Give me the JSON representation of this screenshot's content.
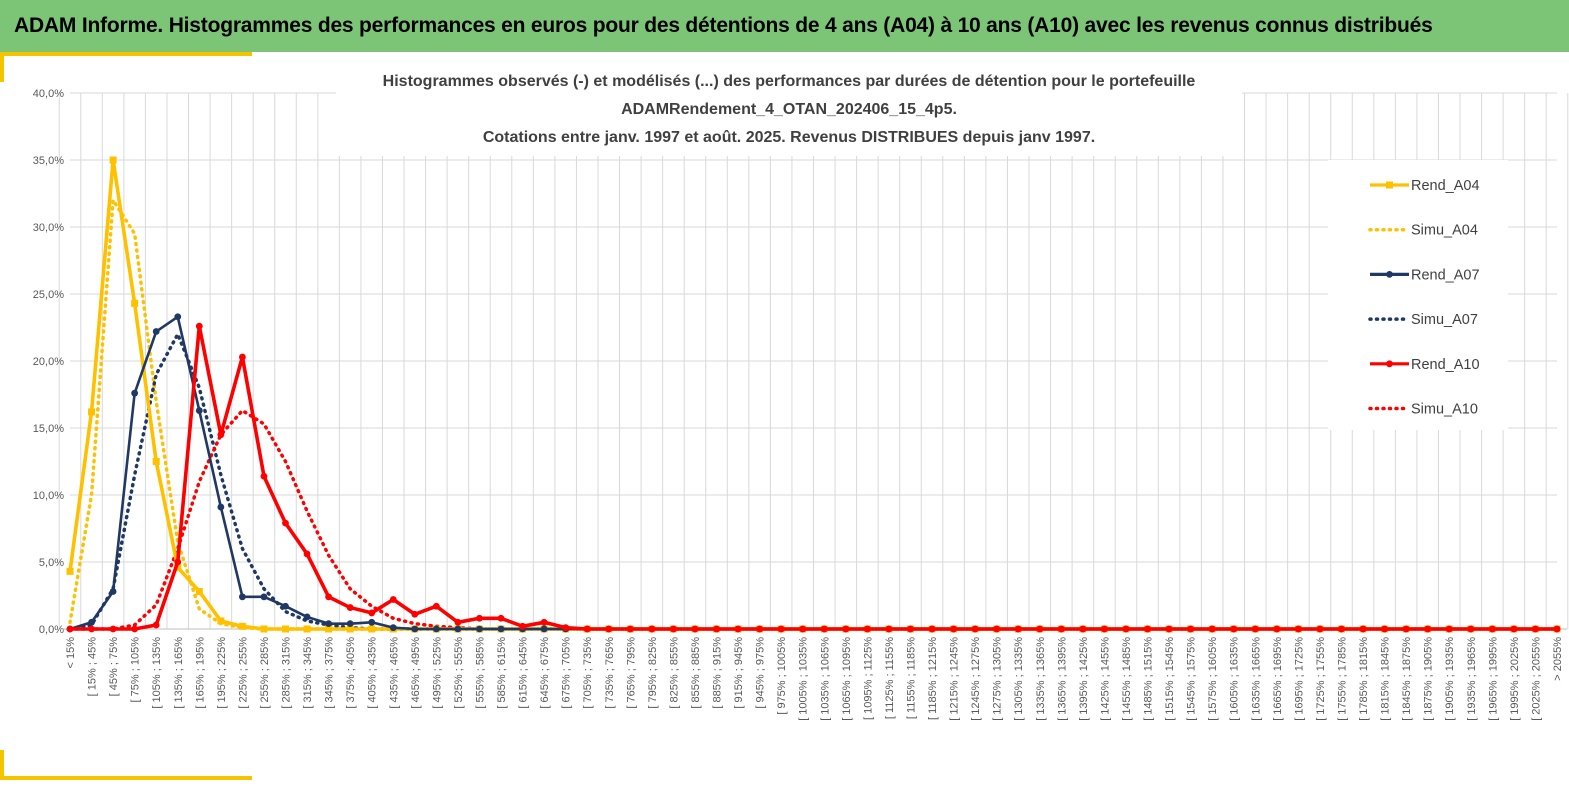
{
  "banner": {
    "title": "ADAM Informe. Histogrammes des performances en euros pour des détentions de 4 ans (A04) à 10 ans (A10) avec les revenus connus distribués",
    "color": "#7cc576",
    "accent": "#f5c400"
  },
  "chart_data": {
    "type": "line",
    "title_lines": [
      "Histogrammes observés (-) et modélisés (...) des performances par durées de détention pour le portefeuille",
      "ADAMRendement_4_OTAN_202406_15_4p5.",
      "Cotations entre janv. 1997 et août. 2025. Revenus DISTRIBUES depuis janv 1997."
    ],
    "ylim": [
      0,
      40
    ],
    "y_ticks": [
      "0,0%",
      "5,0%",
      "10,0%",
      "15,0%",
      "20,0%",
      "25,0%",
      "30,0%",
      "35,0%",
      "40,0%"
    ],
    "grid": true,
    "legend_position": "right",
    "categories": [
      "< 15%",
      "[ 15% ; 45%",
      "[ 45% ; 75%",
      "[ 75% ; 105%",
      "[ 105% ; 135%",
      "[ 135% ; 165%",
      "[ 165% ; 195%",
      "[ 195% ; 225%",
      "[ 225% ; 255%",
      "[ 255% ; 285%",
      "[ 285% ; 315%",
      "[ 315% ; 345%",
      "[ 345% ; 375%",
      "[ 375% ; 405%",
      "[ 405% ; 435%",
      "[ 435% ; 465%",
      "[ 465% ; 495%",
      "[ 495% ; 525%",
      "[ 525% ; 555%",
      "[ 555% ; 585%",
      "[ 585% ; 615%",
      "[ 615% ; 645%",
      "[ 645% ; 675%",
      "[ 675% ; 705%",
      "[ 705% ; 735%",
      "[ 735% ; 765%",
      "[ 765% ; 795%",
      "[ 795% ; 825%",
      "[ 825% ; 855%",
      "[ 855% ; 885%",
      "[ 885% ; 915%",
      "[ 915% ; 945%",
      "[ 945% ; 975%",
      "[ 975% ; 1005%",
      "[ 1005% ; 1035%",
      "[ 1035% ; 1065%",
      "[ 1065% ; 1095%",
      "[ 1095% ; 1125%",
      "[ 1125% ; 1155%",
      "[ 1155% ; 1185%",
      "[ 1185% ; 1215%",
      "[ 1215% ; 1245%",
      "[ 1245% ; 1275%",
      "[ 1275% ; 1305%",
      "[ 1305% ; 1335%",
      "[ 1335% ; 1365%",
      "[ 1365% ; 1395%",
      "[ 1395% ; 1425%",
      "[ 1425% ; 1455%",
      "[ 1455% ; 1485%",
      "[ 1485% ; 1515%",
      "[ 1515% ; 1545%",
      "[ 1545% ; 1575%",
      "[ 1575% ; 1605%",
      "[ 1605% ; 1635%",
      "[ 1635% ; 1665%",
      "[ 1665% ; 1695%",
      "[ 1695% ; 1725%",
      "[ 1725% ; 1755%",
      "[ 1755% ; 1785%",
      "[ 1785% ; 1815%",
      "[ 1815% ; 1845%",
      "[ 1845% ; 1875%",
      "[ 1875% ; 1905%",
      "[ 1905% ; 1935%",
      "[ 1935% ; 1965%",
      "[ 1965% ; 1995%",
      "[ 1995% ; 2025%",
      "[ 2025% ; 2055%",
      "> 2055%"
    ],
    "series": [
      {
        "name": "Rend_A04",
        "color": "#ffc000",
        "style": "solid",
        "markers": true,
        "values": [
          4.3,
          16.2,
          35.0,
          24.3,
          12.5,
          4.6,
          2.8,
          0.6,
          0.2,
          0,
          0,
          0,
          0,
          0,
          0,
          0,
          0,
          0,
          0,
          0,
          0,
          0,
          0,
          0,
          0,
          0,
          0,
          0,
          0,
          0,
          0,
          0,
          0,
          0,
          0,
          0,
          0,
          0,
          0,
          0,
          0,
          0,
          0,
          0,
          0,
          0,
          0,
          0,
          0,
          0,
          0,
          0,
          0,
          0,
          0,
          0,
          0,
          0,
          0,
          0,
          0,
          0,
          0,
          0,
          0,
          0,
          0,
          0,
          0,
          0
        ]
      },
      {
        "name": "Simu_A04",
        "color": "#ffc000",
        "style": "dotted",
        "markers": false,
        "values": [
          0.5,
          10.0,
          32.0,
          29.5,
          17.0,
          6.5,
          1.5,
          0.4,
          0.1,
          0,
          0,
          0,
          0,
          0,
          0,
          0,
          0,
          0,
          0,
          0,
          0,
          0,
          0,
          0,
          0,
          0,
          0,
          0,
          0,
          0,
          0,
          0,
          0,
          0,
          0,
          0,
          0,
          0,
          0,
          0,
          0,
          0,
          0,
          0,
          0,
          0,
          0,
          0,
          0,
          0,
          0,
          0,
          0,
          0,
          0,
          0,
          0,
          0,
          0,
          0,
          0,
          0,
          0,
          0,
          0,
          0,
          0,
          0,
          0,
          0
        ]
      },
      {
        "name": "Rend_A07",
        "color": "#1f3864",
        "style": "solid",
        "markers": true,
        "values": [
          0,
          0.5,
          2.8,
          17.6,
          22.2,
          23.3,
          16.3,
          9.1,
          2.4,
          2.4,
          1.7,
          0.9,
          0.4,
          0.4,
          0.5,
          0.1,
          0,
          0,
          0,
          0,
          0,
          0,
          0,
          0,
          0,
          0,
          0,
          0,
          0,
          0,
          0,
          0,
          0,
          0,
          0,
          0,
          0,
          0,
          0,
          0,
          0,
          0,
          0,
          0,
          0,
          0,
          0,
          0,
          0,
          0,
          0,
          0,
          0,
          0,
          0,
          0,
          0,
          0,
          0,
          0,
          0,
          0,
          0,
          0,
          0,
          0,
          0,
          0,
          0,
          0
        ]
      },
      {
        "name": "Simu_A07",
        "color": "#1f3864",
        "style": "dotted",
        "markers": false,
        "values": [
          0,
          0.3,
          3.0,
          11.5,
          19.0,
          22.0,
          18.0,
          11.5,
          6.0,
          3.0,
          1.3,
          0.6,
          0.3,
          0.1,
          0,
          0,
          0,
          0,
          0,
          0,
          0,
          0,
          0,
          0,
          0,
          0,
          0,
          0,
          0,
          0,
          0,
          0,
          0,
          0,
          0,
          0,
          0,
          0,
          0,
          0,
          0,
          0,
          0,
          0,
          0,
          0,
          0,
          0,
          0,
          0,
          0,
          0,
          0,
          0,
          0,
          0,
          0,
          0,
          0,
          0,
          0,
          0,
          0,
          0,
          0,
          0,
          0,
          0,
          0,
          0
        ]
      },
      {
        "name": "Rend_A10",
        "color": "#ff0000",
        "style": "solid",
        "markers": true,
        "values": [
          0,
          0,
          0,
          0,
          0.3,
          5.0,
          22.6,
          14.5,
          20.3,
          11.4,
          7.9,
          5.6,
          2.4,
          1.6,
          1.2,
          2.2,
          1.1,
          1.7,
          0.5,
          0.8,
          0.8,
          0.2,
          0.5,
          0.1,
          0,
          0,
          0,
          0,
          0,
          0,
          0,
          0,
          0,
          0,
          0,
          0,
          0,
          0,
          0,
          0,
          0,
          0,
          0,
          0,
          0,
          0,
          0,
          0,
          0,
          0,
          0,
          0,
          0,
          0,
          0,
          0,
          0,
          0,
          0,
          0,
          0,
          0,
          0,
          0,
          0,
          0,
          0,
          0,
          0,
          0
        ]
      },
      {
        "name": "Simu_A10",
        "color": "#ff0000",
        "style": "dotted",
        "markers": false,
        "values": [
          0,
          0,
          0,
          0.3,
          1.8,
          6.0,
          11.0,
          14.5,
          16.3,
          15.3,
          12.5,
          8.8,
          5.5,
          3.0,
          1.7,
          0.8,
          0.4,
          0.2,
          0.1,
          0,
          0,
          0,
          0,
          0,
          0,
          0,
          0,
          0,
          0,
          0,
          0,
          0,
          0,
          0,
          0,
          0,
          0,
          0,
          0,
          0,
          0,
          0,
          0,
          0,
          0,
          0,
          0,
          0,
          0,
          0,
          0,
          0,
          0,
          0,
          0,
          0,
          0,
          0,
          0,
          0,
          0,
          0,
          0,
          0,
          0,
          0,
          0,
          0,
          0,
          0
        ]
      }
    ]
  }
}
